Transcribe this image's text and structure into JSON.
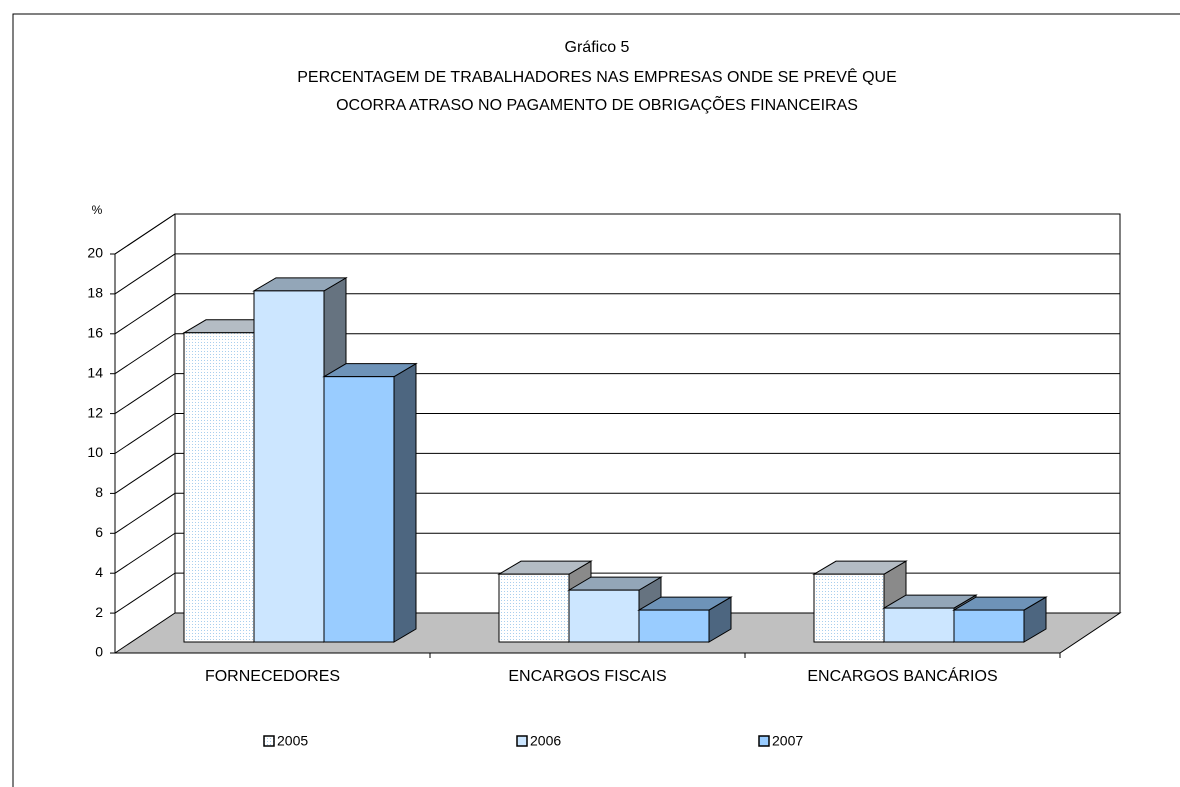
{
  "chart_data": {
    "type": "bar3d",
    "title": [
      "Gráfico 5",
      "PERCENTAGEM DE TRABALHADORES NAS EMPRESAS ONDE SE PREVÊ QUE",
      "OCORRA ATRASO NO PAGAMENTO DE OBRIGAÇÕES FINANCEIRAS"
    ],
    "y_label": "%",
    "categories": [
      "FORNECEDORES",
      "ENCARGOS FISCAIS",
      "ENCARGOS BANCÁRIOS"
    ],
    "series": [
      {
        "name": "2005",
        "color": "#eef6ff",
        "values": [
          15.5,
          3.4,
          3.4
        ]
      },
      {
        "name": "2006",
        "color": "#cce6ff",
        "values": [
          17.6,
          2.6,
          1.7
        ]
      },
      {
        "name": "2007",
        "color": "#99ccff",
        "values": [
          13.3,
          1.6,
          1.6
        ]
      }
    ],
    "ylim": [
      0,
      20
    ],
    "yticks": [
      0,
      2,
      4,
      6,
      8,
      10,
      12,
      14,
      16,
      18,
      20
    ],
    "grid": true
  }
}
